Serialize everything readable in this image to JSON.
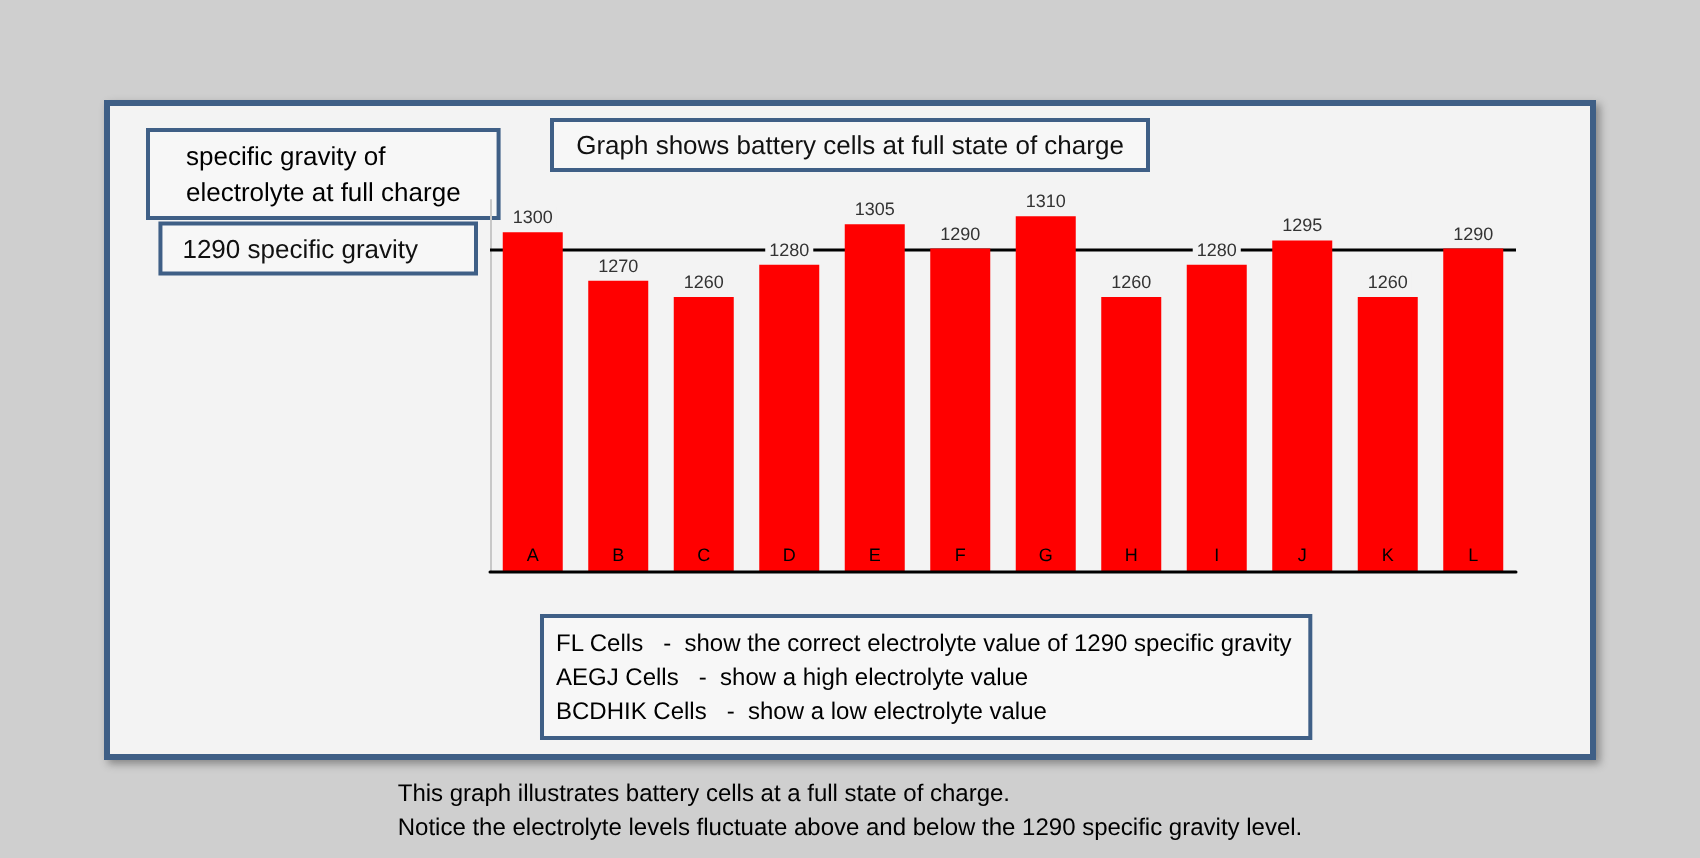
{
  "chart_data": {
    "type": "bar",
    "title": "Graph shows battery cells at full state of charge",
    "ylabel": "specific gravity of\nelectrolyte at full charge",
    "categories": [
      "A",
      "B",
      "C",
      "D",
      "E",
      "F",
      "G",
      "H",
      "I",
      "J",
      "K",
      "L"
    ],
    "values": [
      1300,
      1270,
      1260,
      1280,
      1305,
      1290,
      1310,
      1260,
      1280,
      1295,
      1260,
      1290
    ],
    "color": "#ff0000",
    "ylim": [
      1090,
      1320
    ],
    "tick_labels": "x",
    "data_labels": true,
    "ref_lines": [
      {
        "axis": "y",
        "value": 1290,
        "label": "1290 specific gravity",
        "color": "#000000",
        "line_style": "solid"
      }
    ],
    "annotations": [
      "FL Cells   -  show the correct electrolyte value of 1290 specific gravity\nAEGJ Cells   -  show a high electrolyte value\nBCDHIK Cells   -  show a low electrolyte value",
      "This graph illustrates battery cells at a full state of charge.\nNotice the electrolyte levels fluctuate above and below the 1290 specific gravity level."
    ]
  }
}
